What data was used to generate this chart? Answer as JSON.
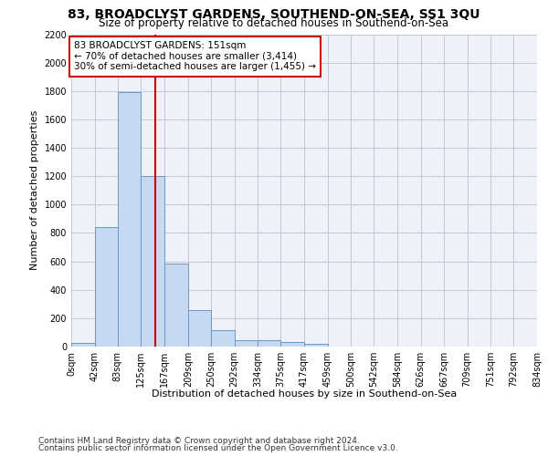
{
  "title": "83, BROADCLYST GARDENS, SOUTHEND-ON-SEA, SS1 3QU",
  "subtitle": "Size of property relative to detached houses in Southend-on-Sea",
  "xlabel": "Distribution of detached houses by size in Southend-on-Sea",
  "ylabel": "Number of detached properties",
  "bar_edges": [
    0,
    42,
    83,
    125,
    167,
    209,
    250,
    292,
    334,
    375,
    417,
    459,
    500,
    542,
    584,
    626,
    667,
    709,
    751,
    792,
    834
  ],
  "bar_heights": [
    25,
    840,
    1790,
    1200,
    585,
    260,
    115,
    48,
    47,
    30,
    20,
    0,
    0,
    0,
    0,
    0,
    0,
    0,
    0,
    0
  ],
  "bar_color": "#c6d9f1",
  "bar_edge_color": "#6699cc",
  "grid_color": "#c0c8d8",
  "background_color": "#eef2f8",
  "red_line_x": 151,
  "annotation_text": "83 BROADCLYST GARDENS: 151sqm\n← 70% of detached houses are smaller (3,414)\n30% of semi-detached houses are larger (1,455) →",
  "annotation_box_color": "#ffffff",
  "annotation_border_color": "#cc0000",
  "ylim": [
    0,
    2200
  ],
  "yticks": [
    0,
    200,
    400,
    600,
    800,
    1000,
    1200,
    1400,
    1600,
    1800,
    2000,
    2200
  ],
  "tick_labels": [
    "0sqm",
    "42sqm",
    "83sqm",
    "125sqm",
    "167sqm",
    "209sqm",
    "250sqm",
    "292sqm",
    "334sqm",
    "375sqm",
    "417sqm",
    "459sqm",
    "500sqm",
    "542sqm",
    "584sqm",
    "626sqm",
    "667sqm",
    "709sqm",
    "751sqm",
    "792sqm",
    "834sqm"
  ],
  "footer_line1": "Contains HM Land Registry data © Crown copyright and database right 2024.",
  "footer_line2": "Contains public sector information licensed under the Open Government Licence v3.0.",
  "title_fontsize": 10,
  "subtitle_fontsize": 8.5,
  "xlabel_fontsize": 8,
  "ylabel_fontsize": 8,
  "tick_fontsize": 7,
  "footer_fontsize": 6.5,
  "annotation_fontsize": 7.5
}
